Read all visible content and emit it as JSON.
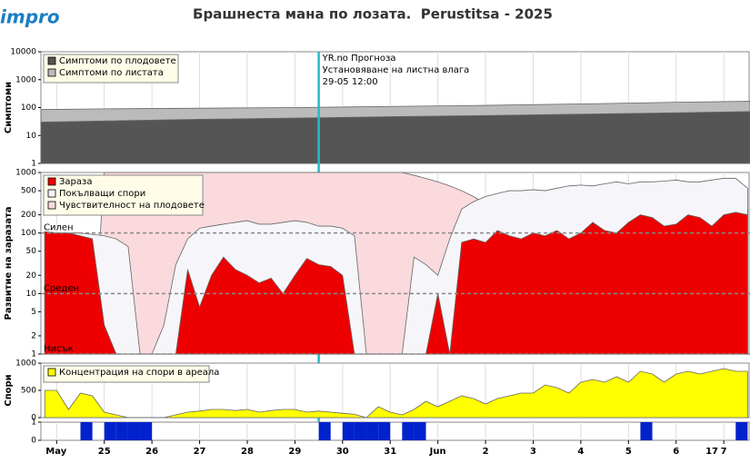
{
  "logo": "impro",
  "title": "Брашнеста мана по лозата.  Perustitsa - 2025",
  "chart_data": [
    {
      "type": "area",
      "y_label": "Симптоми",
      "log": true,
      "ylim": [
        1,
        10000
      ],
      "yticks": [
        1,
        10,
        100,
        1000,
        10000
      ],
      "x": [
        -0.33,
        1,
        3,
        5,
        7,
        9,
        11,
        13,
        14.55
      ],
      "series": [
        {
          "name": "Симптоми по плодовете",
          "color": "#555555",
          "values": [
            30,
            33,
            38,
            42,
            47,
            52,
            58,
            65,
            72
          ]
        },
        {
          "name": "Симптоми по листата",
          "color": "#bbbbbb",
          "values": [
            85,
            90,
            95,
            100,
            110,
            120,
            135,
            155,
            168
          ]
        }
      ],
      "forecast": {
        "x": 5.5,
        "lines": [
          "YR.no Прогноза",
          "Установяване на листна влага",
          "29-05 12:00"
        ]
      }
    },
    {
      "type": "area",
      "y_label": "Развитие на заразата",
      "log": true,
      "ylim": [
        1,
        1000
      ],
      "yticks": [
        1,
        2,
        5,
        10,
        20,
        50,
        100,
        200,
        500,
        1000
      ],
      "levels": [
        {
          "value": 100,
          "label": "Силен"
        },
        {
          "value": 10,
          "label": "Среден"
        },
        {
          "value": 1,
          "label": "Нисък"
        }
      ],
      "x": [
        -0.25,
        0,
        0.25,
        0.5,
        0.75,
        1,
        1.25,
        1.5,
        1.75,
        2,
        2.25,
        2.5,
        2.75,
        3,
        3.25,
        3.5,
        3.75,
        4,
        4.25,
        4.5,
        4.75,
        5,
        5.25,
        5.5,
        5.75,
        6,
        6.25,
        6.5,
        6.75,
        7,
        7.25,
        7.5,
        7.75,
        8,
        8.25,
        8.5,
        8.75,
        9,
        9.25,
        9.5,
        9.75,
        10,
        10.25,
        10.5,
        10.75,
        11,
        11.25,
        11.5,
        11.75,
        12,
        12.25,
        12.5,
        12.75,
        13,
        13.25,
        13.5,
        13.75,
        14,
        14.25,
        14.5
      ],
      "series": [
        {
          "name": "Зараза",
          "color": "#ee0000",
          "values": [
            105,
            100,
            100,
            90,
            80,
            3,
            1,
            1,
            1,
            1,
            1,
            1,
            25,
            6,
            20,
            40,
            25,
            20,
            15,
            18,
            10,
            20,
            38,
            30,
            28,
            20,
            1,
            1,
            1,
            1,
            1,
            1,
            1,
            10,
            1,
            70,
            80,
            70,
            110,
            90,
            80,
            100,
            90,
            110,
            80,
            100,
            150,
            110,
            100,
            150,
            200,
            180,
            130,
            140,
            200,
            180,
            130,
            200,
            220,
            200
          ]
        },
        {
          "name": "Покълващи спори",
          "color": "#f6f6fa",
          "values": [
            105,
            100,
            100,
            100,
            95,
            90,
            80,
            60,
            1,
            1,
            3,
            30,
            80,
            120,
            130,
            140,
            150,
            160,
            140,
            140,
            150,
            160,
            150,
            130,
            130,
            120,
            90,
            1,
            1,
            1,
            1,
            40,
            30,
            20,
            80,
            250,
            330,
            400,
            450,
            500,
            500,
            520,
            500,
            550,
            600,
            620,
            600,
            650,
            700,
            650,
            700,
            700,
            720,
            750,
            700,
            700,
            750,
            800,
            800,
            550
          ]
        },
        {
          "name": "Чувствителност на плодовете",
          "color": "#fadadd",
          "values": [
            1,
            1,
            1,
            1,
            1,
            1000,
            1000,
            1000,
            1000,
            1000,
            1000,
            1000,
            1000,
            1000,
            1000,
            1000,
            1000,
            1000,
            1000,
            1000,
            1000,
            1000,
            1000,
            1000,
            1000,
            1000,
            1000,
            1000,
            1000,
            1000,
            1000,
            900,
            800,
            700,
            600,
            500,
            400,
            300,
            250,
            250,
            250,
            250,
            250,
            250,
            250,
            250,
            250,
            250,
            250,
            250,
            250,
            250,
            250,
            250,
            250,
            250,
            250,
            250,
            250,
            250
          ]
        }
      ]
    },
    {
      "type": "area",
      "y_label": "Спори",
      "log": false,
      "ylim": [
        0,
        1000
      ],
      "yticks": [
        0,
        500,
        1000
      ],
      "x": [
        -0.25,
        0,
        0.25,
        0.5,
        0.75,
        1,
        1.25,
        1.5,
        1.75,
        2,
        2.25,
        2.5,
        2.75,
        3,
        3.25,
        3.5,
        3.75,
        4,
        4.25,
        4.5,
        4.75,
        5,
        5.25,
        5.5,
        5.75,
        6,
        6.25,
        6.5,
        6.75,
        7,
        7.25,
        7.5,
        7.75,
        8,
        8.25,
        8.5,
        8.75,
        9,
        9.25,
        9.5,
        9.75,
        10,
        10.25,
        10.5,
        10.75,
        11,
        11.25,
        11.5,
        11.75,
        12,
        12.25,
        12.5,
        12.75,
        13,
        13.25,
        13.5,
        13.75,
        14,
        14.25,
        14.5
      ],
      "series": [
        {
          "name": "Концентрация на спори в ареала",
          "color": "#ffff00",
          "values": [
            500,
            500,
            150,
            450,
            400,
            100,
            50,
            0,
            0,
            0,
            0,
            50,
            100,
            120,
            150,
            150,
            130,
            150,
            100,
            130,
            150,
            150,
            100,
            120,
            100,
            80,
            60,
            0,
            200,
            100,
            50,
            150,
            300,
            200,
            300,
            400,
            350,
            250,
            350,
            400,
            450,
            450,
            600,
            550,
            450,
            650,
            700,
            650,
            750,
            650,
            850,
            800,
            650,
            800,
            850,
            800,
            850,
            900,
            850,
            850
          ]
        }
      ]
    },
    {
      "type": "bar",
      "log": false,
      "ylim": [
        0,
        1
      ],
      "yticks": [
        0,
        1
      ],
      "color": "#0022cc",
      "x": [
        -0.25,
        0,
        0.25,
        0.5,
        0.75,
        1,
        1.25,
        1.5,
        1.75,
        2,
        2.25,
        2.5,
        2.75,
        3,
        3.25,
        3.5,
        3.75,
        4,
        4.25,
        4.5,
        4.75,
        5,
        5.25,
        5.5,
        5.75,
        6,
        6.25,
        6.5,
        6.75,
        7,
        7.25,
        7.5,
        7.75,
        8,
        8.25,
        8.5,
        8.75,
        9,
        9.25,
        9.5,
        9.75,
        10,
        10.25,
        10.5,
        10.75,
        11,
        11.25,
        11.5,
        11.75,
        12,
        12.25,
        12.5,
        12.75,
        13,
        13.25,
        13.5,
        13.75,
        14,
        14.25,
        14.5
      ],
      "values": [
        0,
        0,
        0,
        1,
        0,
        1,
        1,
        1,
        1,
        0,
        0,
        0,
        0,
        0,
        0,
        0,
        0,
        0,
        0,
        0,
        0,
        0,
        0,
        1,
        0,
        1,
        1,
        1,
        1,
        0,
        1,
        1,
        0,
        0,
        0,
        0,
        0,
        0,
        0,
        0,
        0,
        0,
        0,
        0,
        0,
        0,
        0,
        0,
        0,
        0,
        1,
        0,
        0,
        0,
        0,
        0,
        0,
        0,
        1,
        0
      ],
      "xlim": [
        -0.33,
        14.55
      ],
      "xticks": [
        {
          "value": 0,
          "label": "May"
        },
        {
          "value": 1,
          "label": "25"
        },
        {
          "value": 2,
          "label": "26"
        },
        {
          "value": 3,
          "label": "27"
        },
        {
          "value": 4,
          "label": "28"
        },
        {
          "value": 5,
          "label": "29"
        },
        {
          "value": 6,
          "label": "30"
        },
        {
          "value": 7,
          "label": "31"
        },
        {
          "value": 8,
          "label": "Jun"
        },
        {
          "value": 9,
          "label": "2"
        },
        {
          "value": 10,
          "label": "3"
        },
        {
          "value": 11,
          "label": "4"
        },
        {
          "value": 12,
          "label": "5"
        },
        {
          "value": 13,
          "label": "6"
        },
        {
          "value": 14,
          "label": "7"
        }
      ],
      "annotations": [
        {
          "text": "17",
          "x": 13.75
        }
      ]
    }
  ]
}
